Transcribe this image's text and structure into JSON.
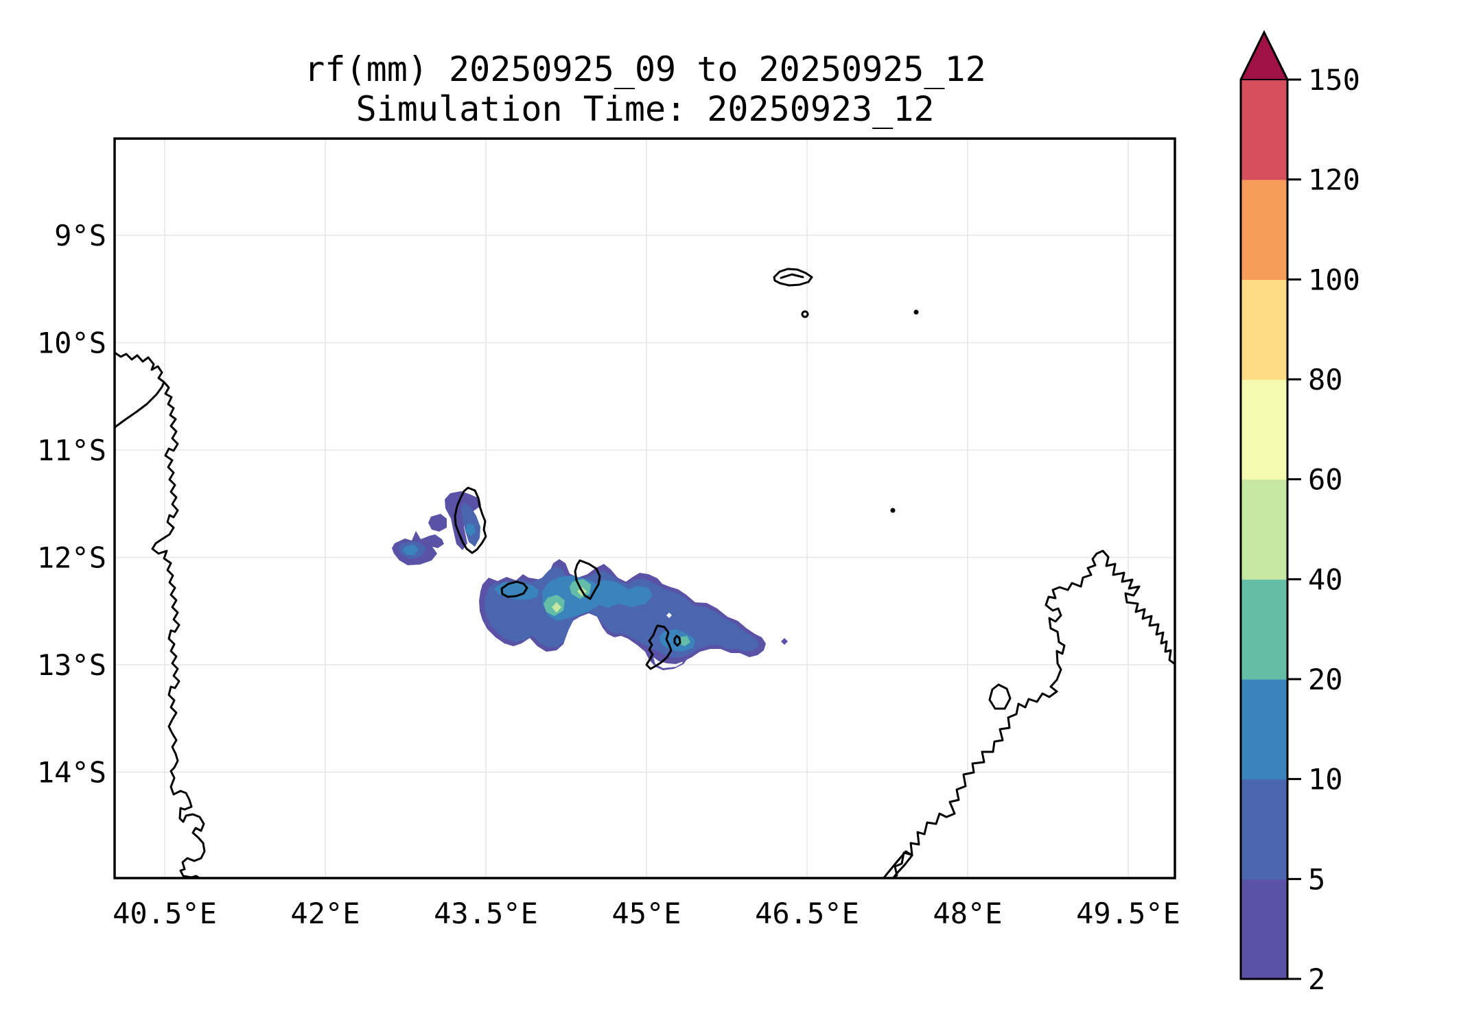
{
  "title": {
    "line1": "rf(mm) 20250925_09 to 20250925_12",
    "line2": "Simulation Time: 20250923_12"
  },
  "map": {
    "lon_ticks": [
      {
        "value": 40.5,
        "label": "40.5°E"
      },
      {
        "value": 42.0,
        "label": "42°E"
      },
      {
        "value": 43.5,
        "label": "43.5°E"
      },
      {
        "value": 45.0,
        "label": "45°E"
      },
      {
        "value": 46.5,
        "label": "46.5°E"
      },
      {
        "value": 48.0,
        "label": "48°E"
      },
      {
        "value": 49.5,
        "label": "49.5°E"
      }
    ],
    "lat_ticks": [
      {
        "value": 9,
        "label": "9°S"
      },
      {
        "value": 10,
        "label": "10°S"
      },
      {
        "value": 11,
        "label": "11°S"
      },
      {
        "value": 12,
        "label": "12°S"
      },
      {
        "value": 13,
        "label": "13°S"
      },
      {
        "value": 14,
        "label": "14°S"
      }
    ]
  },
  "colorbar": {
    "levels": [
      2,
      5,
      10,
      20,
      40,
      60,
      80,
      100,
      120,
      150
    ],
    "segment_colors": [
      "#5a52a4",
      "#4a66ae",
      "#3a83bb",
      "#63bda7",
      "#c6e8a2",
      "#f4fab0",
      "#fcda86",
      "#f89c5c",
      "#d44f5b"
    ],
    "over_color": "#9e1245",
    "grid_color": "#e5e5e5",
    "coast_color": "#000000"
  },
  "chart_data": {
    "type": "heatmap",
    "title": "rf(mm) 20250925_09 to 20250925_12",
    "subtitle": "Simulation Time: 20250923_12",
    "variable": "rainfall accumulation (mm), 3-hour window",
    "x": {
      "label_suffix": "°E",
      "range": [
        40.05,
        49.95
      ],
      "ticks": [
        40.5,
        42,
        43.5,
        45,
        46.5,
        48,
        49.5
      ]
    },
    "y": {
      "label_suffix": "°S",
      "range": [
        8.1,
        15.0
      ],
      "ticks": [
        9,
        10,
        11,
        12,
        13,
        14
      ]
    },
    "grid": true,
    "legend_position": "right-colorbar",
    "colorbar_levels": [
      2,
      5,
      10,
      20,
      40,
      60,
      80,
      100,
      120,
      150
    ],
    "colorbar_colors": [
      "#5a52a4",
      "#4a66ae",
      "#3a83bb",
      "#63bda7",
      "#c6e8a2",
      "#f4fab0",
      "#fcda86",
      "#f89c5c",
      "#d44f5b"
    ],
    "colorbar_over_color": "#9e1245",
    "rain_cells": [
      {
        "lon": 43.3,
        "lat": 11.5,
        "band_mm": "2-5"
      },
      {
        "lon": 42.8,
        "lat": 11.93,
        "band_mm": "10-20"
      },
      {
        "lon": 43.36,
        "lat": 11.74,
        "band_mm": "10-20"
      },
      {
        "lon": 44.4,
        "lat": 12.32,
        "band_mm": "40-60"
      },
      {
        "lon": 44.16,
        "lat": 12.46,
        "band_mm": "40-60"
      },
      {
        "lon": 44.9,
        "lat": 12.3,
        "band_mm": "10-20"
      },
      {
        "lon": 45.35,
        "lat": 12.78,
        "band_mm": "20-40"
      },
      {
        "lon": 46.1,
        "lat": 12.85,
        "band_mm": "2-5"
      },
      {
        "lon": 46.29,
        "lat": 12.78,
        "band_mm": "2-5"
      }
    ],
    "map_features": [
      "East African coastline",
      "Comoros islands",
      "Mayotte",
      "Aldabra atoll",
      "Glorioso islet",
      "Nosy Be",
      "Northern Madagascar coastline"
    ]
  }
}
